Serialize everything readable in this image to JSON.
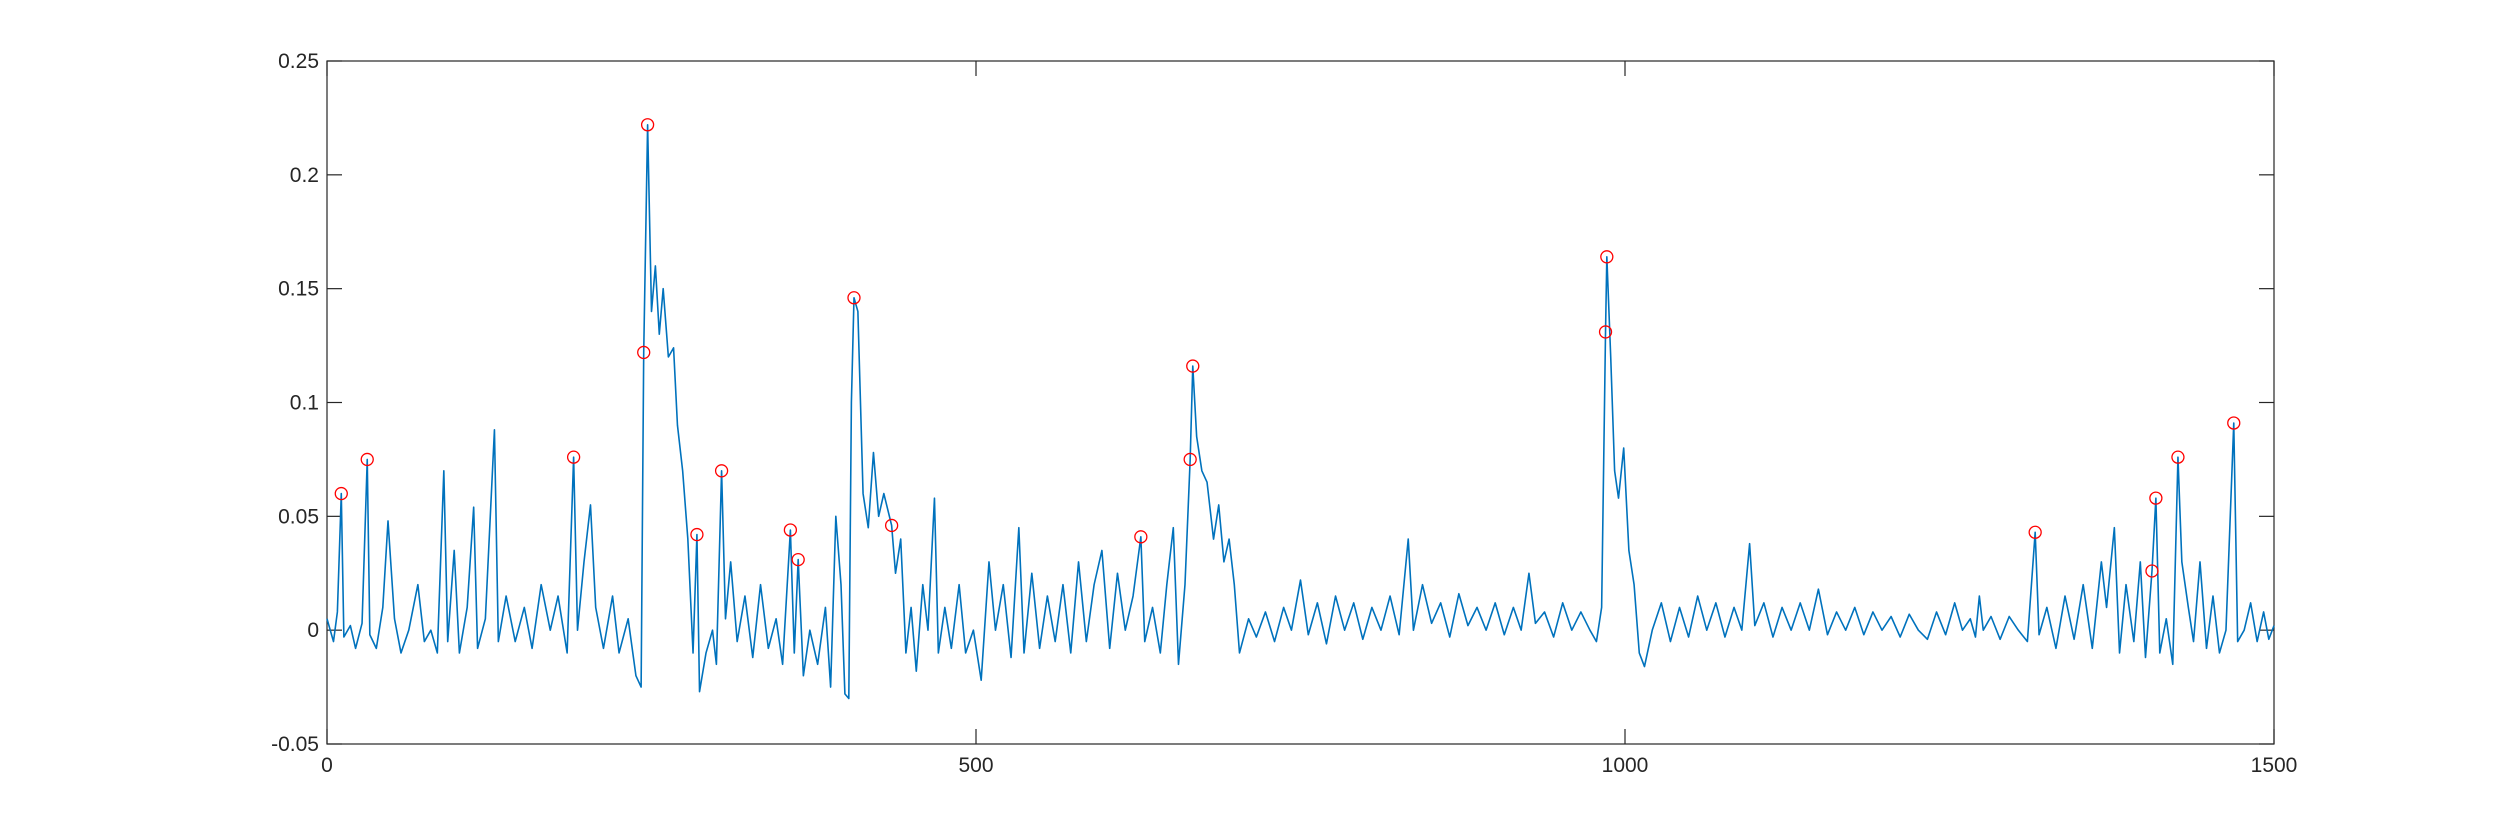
{
  "chart_data": {
    "type": "line",
    "xlim": [
      0,
      1500
    ],
    "xticks": [
      0,
      500,
      1000,
      1500
    ],
    "ylim": [
      -0.05,
      0.25
    ],
    "yticks": [
      -0.05,
      0,
      0.05,
      0.1,
      0.15,
      0.2,
      0.25
    ],
    "grid": false,
    "box": true,
    "series": [
      {
        "color": "#0072bd",
        "linestyle": "solid",
        "marker": "none",
        "x": [
          0,
          5,
          8,
          11,
          13,
          18,
          22,
          27,
          31,
          33,
          38,
          43,
          47,
          52,
          57,
          63,
          70,
          75,
          80,
          85,
          90,
          93,
          98,
          102,
          108,
          113,
          116,
          122,
          129,
          132,
          138,
          145,
          152,
          158,
          165,
          172,
          178,
          185,
          190,
          193,
          198,
          203,
          207,
          213,
          220,
          225,
          232,
          238,
          242,
          244,
          247,
          250,
          253,
          256,
          259,
          263,
          267,
          270,
          274,
          278,
          282,
          285,
          287,
          292,
          297,
          300,
          304,
          307,
          311,
          316,
          322,
          328,
          334,
          340,
          346,
          351,
          357,
          360,
          363,
          367,
          372,
          378,
          384,
          388,
          392,
          396,
          399,
          402,
          404,
          406,
          409,
          413,
          417,
          421,
          425,
          429,
          435,
          438,
          442,
          446,
          450,
          454,
          459,
          463,
          468,
          471,
          476,
          481,
          487,
          492,
          498,
          504,
          510,
          515,
          521,
          527,
          533,
          537,
          543,
          549,
          555,
          561,
          567,
          573,
          579,
          585,
          591,
          597,
          603,
          609,
          615,
          621,
          627,
          630,
          636,
          642,
          647,
          652,
          656,
          661,
          665,
          667,
          670,
          674,
          678,
          683,
          687,
          691,
          695,
          699,
          703,
          710,
          716,
          723,
          730,
          737,
          743,
          750,
          756,
          763,
          770,
          777,
          784,
          791,
          798,
          805,
          812,
          819,
          826,
          833,
          837,
          844,
          851,
          858,
          865,
          872,
          879,
          886,
          893,
          900,
          907,
          914,
          920,
          926,
          931,
          938,
          945,
          952,
          959,
          966,
          973,
          978,
          982,
          985,
          986,
          989,
          992,
          995,
          999,
          1003,
          1007,
          1011,
          1015,
          1021,
          1028,
          1035,
          1042,
          1049,
          1056,
          1063,
          1070,
          1077,
          1084,
          1090,
          1096,
          1100,
          1107,
          1114,
          1121,
          1128,
          1135,
          1142,
          1149,
          1156,
          1163,
          1170,
          1177,
          1184,
          1191,
          1198,
          1205,
          1212,
          1219,
          1226,
          1233,
          1240,
          1247,
          1254,
          1260,
          1266,
          1270,
          1273,
          1276,
          1282,
          1289,
          1296,
          1303,
          1310,
          1316,
          1319,
          1325,
          1332,
          1339,
          1346,
          1353,
          1360,
          1367,
          1371,
          1377,
          1381,
          1386,
          1392,
          1397,
          1401,
          1406,
          1409,
          1412,
          1417,
          1422,
          1426,
          1429,
          1434,
          1438,
          1443,
          1448,
          1453,
          1458,
          1463,
          1469,
          1472,
          1477,
          1482,
          1487,
          1492,
          1496,
          1500
        ],
        "values": [
          0.005,
          -0.005,
          0.008,
          0.06,
          -0.003,
          0.002,
          -0.008,
          0.003,
          0.075,
          -0.002,
          -0.008,
          0.01,
          0.048,
          0.005,
          -0.01,
          0,
          0.02,
          -0.005,
          0,
          -0.01,
          0.07,
          -0.005,
          0.035,
          -0.01,
          0.01,
          0.054,
          -0.008,
          0.005,
          0.088,
          -0.005,
          0.015,
          -0.005,
          0.01,
          -0.008,
          0.02,
          0,
          0.015,
          -0.01,
          0.076,
          0,
          0.03,
          0.055,
          0.01,
          -0.008,
          0.015,
          -0.01,
          0.005,
          -0.02,
          -0.025,
          0.122,
          0.222,
          0.14,
          0.16,
          0.13,
          0.15,
          0.12,
          0.124,
          0.09,
          0.07,
          0.04,
          -0.01,
          0.042,
          -0.027,
          -0.01,
          0,
          -0.015,
          0.07,
          0.005,
          0.03,
          -0.005,
          0.015,
          -0.012,
          0.02,
          -0.008,
          0.005,
          -0.015,
          0.044,
          -0.01,
          0.031,
          -0.02,
          0,
          -0.015,
          0.01,
          -0.025,
          0.05,
          0.02,
          -0.028,
          -0.03,
          0.1,
          0.146,
          0.14,
          0.06,
          0.045,
          0.078,
          0.05,
          0.06,
          0.046,
          0.025,
          0.04,
          -0.01,
          0.01,
          -0.018,
          0.02,
          0,
          0.058,
          -0.01,
          0.01,
          -0.008,
          0.02,
          -0.01,
          0,
          -0.022,
          0.03,
          0,
          0.02,
          -0.012,
          0.045,
          -0.01,
          0.025,
          -0.008,
          0.015,
          -0.005,
          0.02,
          -0.01,
          0.03,
          -0.005,
          0.02,
          0.035,
          -0.008,
          0.025,
          0,
          0.015,
          0.041,
          -0.005,
          0.01,
          -0.01,
          0.02,
          0.045,
          -0.015,
          0.02,
          0.075,
          0.116,
          0.085,
          0.07,
          0.065,
          0.04,
          0.055,
          0.03,
          0.04,
          0.02,
          -0.01,
          0.005,
          -0.003,
          0.008,
          -0.005,
          0.01,
          0,
          0.022,
          -0.002,
          0.012,
          -0.006,
          0.015,
          0,
          0.012,
          -0.004,
          0.01,
          0,
          0.015,
          -0.002,
          0.04,
          0,
          0.02,
          0.003,
          0.012,
          -0.003,
          0.016,
          0.002,
          0.01,
          0,
          0.012,
          -0.002,
          0.01,
          0,
          0.025,
          0.003,
          0.008,
          -0.003,
          0.012,
          0,
          0.008,
          0,
          -0.005,
          0.01,
          0.131,
          0.164,
          0.12,
          0.07,
          0.058,
          0.08,
          0.035,
          0.02,
          -0.01,
          -0.016,
          0,
          0.012,
          -0.005,
          0.01,
          -0.003,
          0.015,
          0,
          0.012,
          -0.003,
          0.01,
          0,
          0.038,
          0.002,
          0.012,
          -0.003,
          0.01,
          0,
          0.012,
          0,
          0.018,
          -0.002,
          0.008,
          0,
          0.01,
          -0.002,
          0.008,
          0,
          0.006,
          -0.003,
          0.007,
          0,
          -0.004,
          0.008,
          -0.002,
          0.012,
          0,
          0.005,
          -0.003,
          0.015,
          0,
          0.006,
          -0.004,
          0.006,
          0,
          -0.005,
          0.043,
          -0.002,
          0.01,
          -0.008,
          0.015,
          -0.004,
          0.02,
          -0.008,
          0.03,
          0.01,
          0.045,
          -0.01,
          0.02,
          -0.005,
          0.03,
          -0.012,
          0.026,
          0.058,
          -0.01,
          0.005,
          -0.015,
          0.076,
          0.03,
          0.01,
          -0.005,
          0.03,
          -0.008,
          0.015,
          -0.01,
          0,
          0.091,
          -0.005,
          0,
          0.012,
          -0.005,
          0.008,
          -0.004,
          0.002
        ]
      },
      {
        "color": "#ff0000",
        "linestyle": "none",
        "marker": "o",
        "x": [
          11,
          31,
          190,
          244,
          247,
          285,
          304,
          357,
          363,
          406,
          435,
          627,
          665,
          667,
          985,
          986,
          1316,
          1406,
          1409,
          1426,
          1469
        ],
        "values": [
          0.06,
          0.075,
          0.076,
          0.122,
          0.222,
          0.042,
          0.07,
          0.044,
          0.031,
          0.146,
          0.046,
          0.041,
          0.075,
          0.116,
          0.131,
          0.164,
          0.043,
          0.026,
          0.058,
          0.076,
          0.091
        ]
      }
    ]
  }
}
